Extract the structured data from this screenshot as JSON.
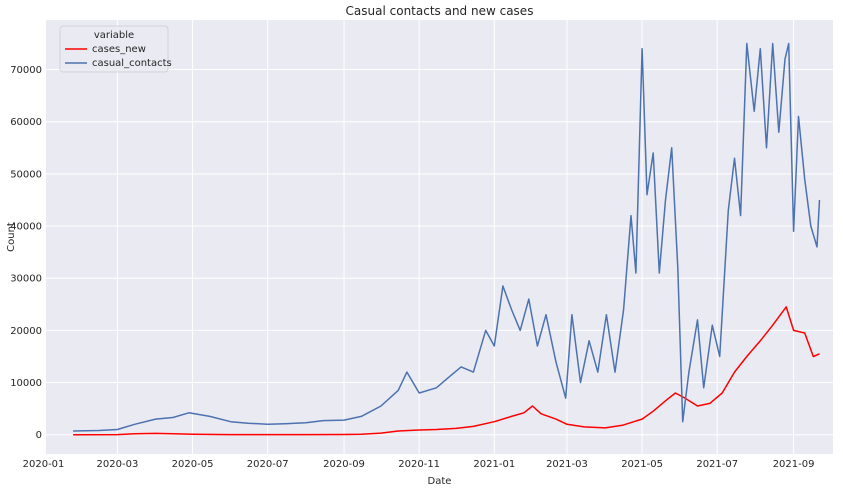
{
  "chart_data": {
    "type": "line",
    "title": "Casual contacts and new cases",
    "xlabel": "Date",
    "ylabel": "Count",
    "x_range": [
      "2020-01-03",
      "2021-10-03"
    ],
    "ylim": [
      -3700,
      79500
    ],
    "x_ticks": [
      "2020-01",
      "2020-03",
      "2020-05",
      "2020-07",
      "2020-09",
      "2020-11",
      "2021-01",
      "2021-03",
      "2021-05",
      "2021-07",
      "2021-09"
    ],
    "y_ticks": [
      0,
      10000,
      20000,
      30000,
      40000,
      50000,
      60000,
      70000
    ],
    "grid": true,
    "legend": {
      "title": "variable",
      "position": "top-left",
      "entries": [
        "cases_new",
        "casual_contacts"
      ]
    },
    "series": [
      {
        "name": "cases_new",
        "color": "#ff0000",
        "points": [
          [
            "2020-01-25",
            0
          ],
          [
            "2020-03-01",
            20
          ],
          [
            "2020-03-15",
            180
          ],
          [
            "2020-04-01",
            250
          ],
          [
            "2020-04-15",
            180
          ],
          [
            "2020-05-01",
            100
          ],
          [
            "2020-06-01",
            20
          ],
          [
            "2020-07-01",
            10
          ],
          [
            "2020-08-01",
            20
          ],
          [
            "2020-09-01",
            30
          ],
          [
            "2020-09-15",
            100
          ],
          [
            "2020-10-01",
            300
          ],
          [
            "2020-10-15",
            700
          ],
          [
            "2020-11-01",
            900
          ],
          [
            "2020-11-15",
            1000
          ],
          [
            "2020-12-01",
            1200
          ],
          [
            "2020-12-15",
            1600
          ],
          [
            "2021-01-01",
            2500
          ],
          [
            "2021-01-15",
            3500
          ],
          [
            "2021-01-25",
            4200
          ],
          [
            "2021-02-01",
            5500
          ],
          [
            "2021-02-08",
            4000
          ],
          [
            "2021-02-20",
            3000
          ],
          [
            "2021-03-01",
            2000
          ],
          [
            "2021-03-15",
            1500
          ],
          [
            "2021-04-01",
            1300
          ],
          [
            "2021-04-15",
            1800
          ],
          [
            "2021-05-01",
            3000
          ],
          [
            "2021-05-10",
            4500
          ],
          [
            "2021-05-20",
            6500
          ],
          [
            "2021-05-28",
            8000
          ],
          [
            "2021-06-05",
            7000
          ],
          [
            "2021-06-15",
            5500
          ],
          [
            "2021-06-25",
            6000
          ],
          [
            "2021-07-05",
            8000
          ],
          [
            "2021-07-15",
            12000
          ],
          [
            "2021-07-25",
            15000
          ],
          [
            "2021-08-05",
            18000
          ],
          [
            "2021-08-15",
            21000
          ],
          [
            "2021-08-26",
            24500
          ],
          [
            "2021-09-01",
            20000
          ],
          [
            "2021-09-10",
            19500
          ],
          [
            "2021-09-17",
            15000
          ],
          [
            "2021-09-22",
            15500
          ]
        ]
      },
      {
        "name": "casual_contacts",
        "color": "#4c72b0",
        "points": [
          [
            "2020-01-25",
            700
          ],
          [
            "2020-02-15",
            800
          ],
          [
            "2020-03-01",
            1000
          ],
          [
            "2020-03-15",
            2000
          ],
          [
            "2020-04-01",
            3000
          ],
          [
            "2020-04-15",
            3300
          ],
          [
            "2020-04-28",
            4200
          ],
          [
            "2020-05-15",
            3500
          ],
          [
            "2020-06-01",
            2500
          ],
          [
            "2020-06-15",
            2200
          ],
          [
            "2020-07-01",
            2000
          ],
          [
            "2020-07-15",
            2100
          ],
          [
            "2020-08-01",
            2300
          ],
          [
            "2020-08-15",
            2700
          ],
          [
            "2020-09-01",
            2800
          ],
          [
            "2020-09-15",
            3500
          ],
          [
            "2020-10-01",
            5500
          ],
          [
            "2020-10-15",
            8500
          ],
          [
            "2020-10-22",
            12000
          ],
          [
            "2020-11-01",
            8000
          ],
          [
            "2020-11-15",
            9000
          ],
          [
            "2020-11-25",
            11000
          ],
          [
            "2020-12-05",
            13000
          ],
          [
            "2020-12-15",
            12000
          ],
          [
            "2020-12-25",
            20000
          ],
          [
            "2021-01-01",
            17000
          ],
          [
            "2021-01-08",
            28500
          ],
          [
            "2021-01-15",
            24000
          ],
          [
            "2021-01-22",
            20000
          ],
          [
            "2021-01-29",
            26000
          ],
          [
            "2021-02-05",
            17000
          ],
          [
            "2021-02-12",
            23000
          ],
          [
            "2021-02-20",
            14000
          ],
          [
            "2021-02-28",
            7000
          ],
          [
            "2021-03-05",
            23000
          ],
          [
            "2021-03-12",
            10000
          ],
          [
            "2021-03-19",
            18000
          ],
          [
            "2021-03-26",
            12000
          ],
          [
            "2021-04-02",
            23000
          ],
          [
            "2021-04-09",
            12000
          ],
          [
            "2021-04-16",
            24000
          ],
          [
            "2021-04-22",
            42000
          ],
          [
            "2021-04-26",
            31000
          ],
          [
            "2021-05-01",
            74000
          ],
          [
            "2021-05-05",
            46000
          ],
          [
            "2021-05-10",
            54000
          ],
          [
            "2021-05-15",
            31000
          ],
          [
            "2021-05-20",
            45000
          ],
          [
            "2021-05-25",
            55000
          ],
          [
            "2021-05-30",
            32000
          ],
          [
            "2021-06-03",
            2500
          ],
          [
            "2021-06-08",
            12000
          ],
          [
            "2021-06-15",
            22000
          ],
          [
            "2021-06-20",
            9000
          ],
          [
            "2021-06-27",
            21000
          ],
          [
            "2021-07-03",
            15000
          ],
          [
            "2021-07-10",
            43000
          ],
          [
            "2021-07-15",
            53000
          ],
          [
            "2021-07-20",
            42000
          ],
          [
            "2021-07-25",
            75000
          ],
          [
            "2021-07-31",
            62000
          ],
          [
            "2021-08-05",
            74000
          ],
          [
            "2021-08-10",
            55000
          ],
          [
            "2021-08-15",
            75000
          ],
          [
            "2021-08-20",
            58000
          ],
          [
            "2021-08-25",
            72000
          ],
          [
            "2021-08-28",
            75000
          ],
          [
            "2021-09-01",
            39000
          ],
          [
            "2021-09-05",
            61000
          ],
          [
            "2021-09-10",
            49000
          ],
          [
            "2021-09-15",
            40000
          ],
          [
            "2021-09-20",
            36000
          ],
          [
            "2021-09-22",
            45000
          ]
        ]
      }
    ]
  }
}
